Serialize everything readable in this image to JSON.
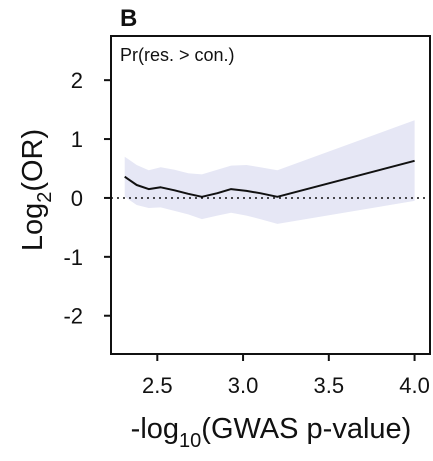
{
  "chart_data": {
    "type": "line",
    "panel_label": "B",
    "annotation": "Pr(res. > con.)",
    "xlabel": {
      "prefix": "-log",
      "subscript": "10",
      "suffix": "(GWAS p-value)"
    },
    "ylabel": {
      "prefix": "Log",
      "subscript": "2",
      "suffix": "(OR)"
    },
    "xlim": [
      2.23,
      4.09
    ],
    "ylim": [
      -2.65,
      2.75
    ],
    "xticks": [
      {
        "value": 2.5,
        "label": "2.5"
      },
      {
        "value": 3.0,
        "label": "3.0"
      },
      {
        "value": 3.5,
        "label": "3.5"
      },
      {
        "value": 4.0,
        "label": "4.0"
      }
    ],
    "yticks": [
      {
        "value": 2,
        "label": "2"
      },
      {
        "value": 1,
        "label": "1"
      },
      {
        "value": 0,
        "label": "0"
      },
      {
        "value": -1,
        "label": "-1"
      },
      {
        "value": -2,
        "label": "-2"
      }
    ],
    "reference_line": {
      "y": 0,
      "style": "dotted"
    },
    "series": [
      {
        "x": [
          2.31,
          2.38,
          2.45,
          2.52,
          2.6,
          2.68,
          2.76,
          2.85,
          2.93,
          3.02,
          3.1,
          3.2,
          4.0
        ],
        "y": [
          0.36,
          0.22,
          0.15,
          0.18,
          0.13,
          0.07,
          0.02,
          0.08,
          0.15,
          0.12,
          0.08,
          0.02,
          0.63
        ],
        "lower": [
          0.02,
          -0.12,
          -0.17,
          -0.16,
          -0.22,
          -0.28,
          -0.36,
          -0.3,
          -0.25,
          -0.3,
          -0.36,
          -0.44,
          -0.05
        ],
        "upper": [
          0.7,
          0.56,
          0.47,
          0.52,
          0.48,
          0.42,
          0.4,
          0.48,
          0.55,
          0.56,
          0.52,
          0.47,
          1.32
        ],
        "line_color": "#111111",
        "band_color": "#e6e7f5"
      }
    ]
  }
}
